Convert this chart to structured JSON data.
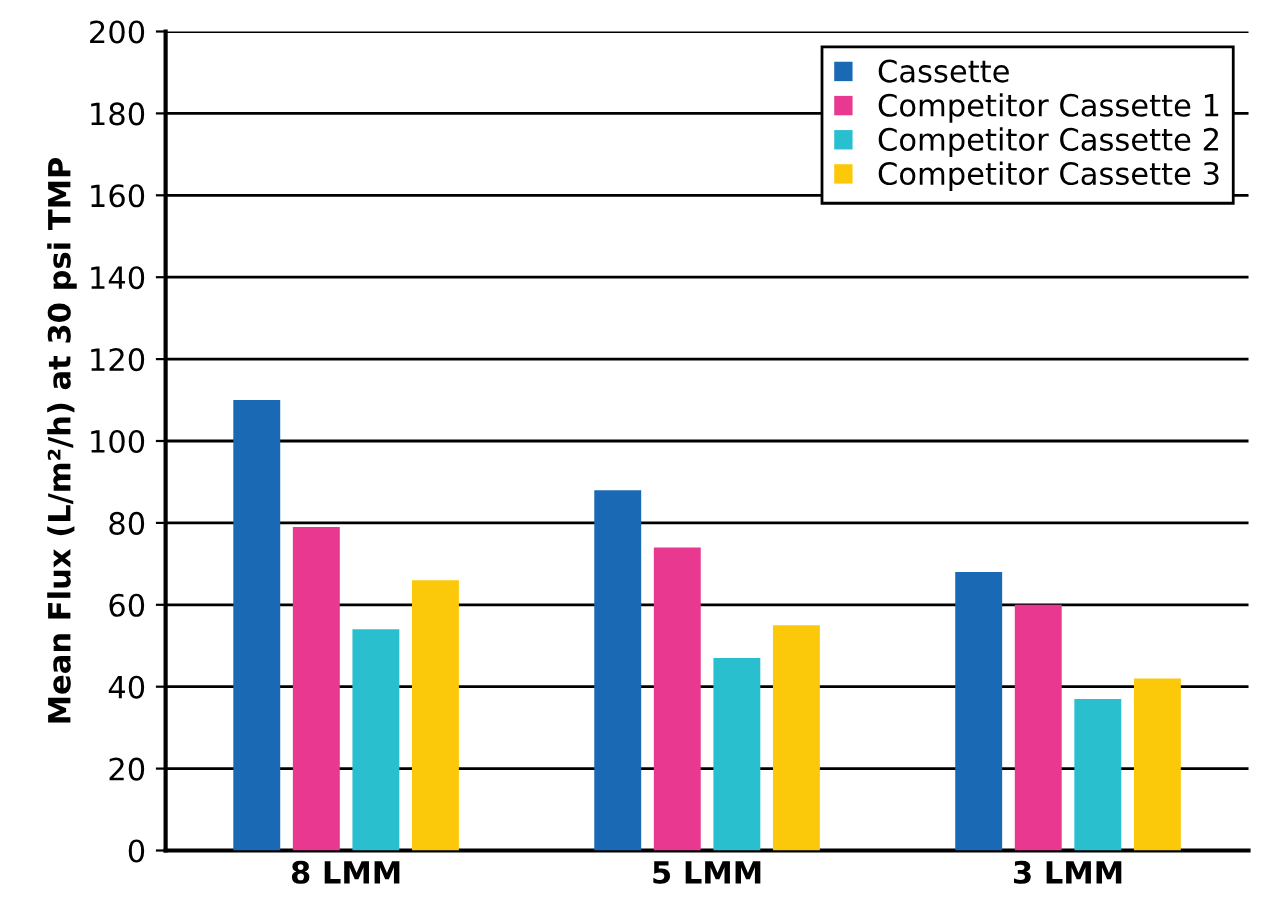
{
  "chart_data": {
    "type": "bar",
    "ylabel": "Mean Flux (L/m²/h) at 30 psi TMP",
    "categories": [
      "8 LMM",
      "5 LMM",
      "3 LMM"
    ],
    "series": [
      {
        "name": "Cassette",
        "color": "#1a69b4",
        "values": [
          110,
          88,
          68
        ]
      },
      {
        "name": "Competitor Cassette 1",
        "color": "#e8388f",
        "values": [
          79,
          74,
          60
        ]
      },
      {
        "name": "Competitor Cassette 2",
        "color": "#29bfcf",
        "values": [
          54,
          47,
          37
        ]
      },
      {
        "name": "Competitor Cassette 3",
        "color": "#fcc80a",
        "values": [
          66,
          55,
          42
        ]
      }
    ],
    "ylim": [
      0,
      200
    ],
    "yticks": [
      0,
      20,
      40,
      60,
      80,
      100,
      120,
      140,
      160,
      180,
      200
    ],
    "grid": "y",
    "legend": "top right"
  }
}
